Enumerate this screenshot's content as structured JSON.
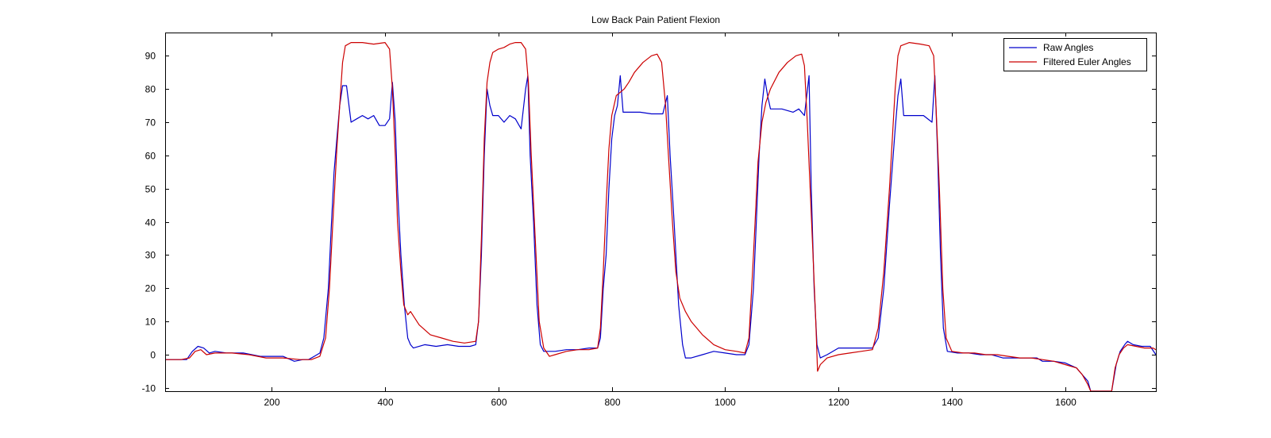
{
  "chart_data": {
    "type": "line",
    "title": "Low Back Pain Patient Flexion",
    "xlabel": "",
    "ylabel": "",
    "xlim": [
      12,
      1760
    ],
    "ylim": [
      -11,
      97
    ],
    "x_ticks": [
      200,
      400,
      600,
      800,
      1000,
      1200,
      1400,
      1600
    ],
    "y_ticks": [
      -10,
      0,
      10,
      20,
      30,
      40,
      50,
      60,
      70,
      80,
      90
    ],
    "grid": false,
    "legend_position": "top-right",
    "series": [
      {
        "name": "Raw Angles",
        "color": "#0000cc",
        "points": [
          [
            12,
            -1.5
          ],
          [
            30,
            -1.5
          ],
          [
            50,
            -1.5
          ],
          [
            60,
            1
          ],
          [
            70,
            2.5
          ],
          [
            80,
            2
          ],
          [
            90,
            0.5
          ],
          [
            100,
            1
          ],
          [
            120,
            0.5
          ],
          [
            150,
            0.5
          ],
          [
            180,
            -0.5
          ],
          [
            200,
            -0.5
          ],
          [
            220,
            -0.5
          ],
          [
            240,
            -2
          ],
          [
            255,
            -1.5
          ],
          [
            265,
            -1.5
          ],
          [
            275,
            -0.5
          ],
          [
            285,
            0.5
          ],
          [
            292,
            5
          ],
          [
            300,
            20
          ],
          [
            305,
            38
          ],
          [
            310,
            55
          ],
          [
            315,
            65
          ],
          [
            320,
            75
          ],
          [
            325,
            81
          ],
          [
            332,
            81
          ],
          [
            340,
            70
          ],
          [
            350,
            71
          ],
          [
            360,
            72
          ],
          [
            370,
            71
          ],
          [
            380,
            72
          ],
          [
            390,
            69
          ],
          [
            400,
            69
          ],
          [
            408,
            71
          ],
          [
            413,
            82
          ],
          [
            418,
            70
          ],
          [
            422,
            50
          ],
          [
            428,
            30
          ],
          [
            434,
            15
          ],
          [
            440,
            5
          ],
          [
            445,
            3
          ],
          [
            450,
            2
          ],
          [
            470,
            3
          ],
          [
            490,
            2.5
          ],
          [
            510,
            3
          ],
          [
            530,
            2.5
          ],
          [
            550,
            2.5
          ],
          [
            560,
            3
          ],
          [
            565,
            10
          ],
          [
            570,
            30
          ],
          [
            575,
            60
          ],
          [
            580,
            80
          ],
          [
            585,
            75
          ],
          [
            590,
            72
          ],
          [
            600,
            72
          ],
          [
            610,
            70
          ],
          [
            620,
            72
          ],
          [
            630,
            71
          ],
          [
            640,
            68
          ],
          [
            648,
            80
          ],
          [
            652,
            84
          ],
          [
            656,
            60
          ],
          [
            662,
            40
          ],
          [
            668,
            15
          ],
          [
            674,
            3
          ],
          [
            680,
            1
          ],
          [
            700,
            1
          ],
          [
            720,
            1.5
          ],
          [
            740,
            1.5
          ],
          [
            760,
            2
          ],
          [
            775,
            2
          ],
          [
            780,
            5
          ],
          [
            785,
            20
          ],
          [
            790,
            30
          ],
          [
            795,
            50
          ],
          [
            800,
            65
          ],
          [
            805,
            72
          ],
          [
            810,
            75
          ],
          [
            815,
            84
          ],
          [
            820,
            73
          ],
          [
            830,
            73
          ],
          [
            850,
            73
          ],
          [
            870,
            72.5
          ],
          [
            890,
            72.5
          ],
          [
            898,
            78
          ],
          [
            903,
            60
          ],
          [
            910,
            40
          ],
          [
            918,
            15
          ],
          [
            925,
            3
          ],
          [
            930,
            -1
          ],
          [
            940,
            -1
          ],
          [
            960,
            0
          ],
          [
            980,
            1
          ],
          [
            1000,
            0.5
          ],
          [
            1020,
            0
          ],
          [
            1035,
            0
          ],
          [
            1042,
            3
          ],
          [
            1050,
            20
          ],
          [
            1055,
            40
          ],
          [
            1060,
            60
          ],
          [
            1065,
            75
          ],
          [
            1070,
            83
          ],
          [
            1075,
            78
          ],
          [
            1080,
            74
          ],
          [
            1100,
            74
          ],
          [
            1120,
            73
          ],
          [
            1130,
            74
          ],
          [
            1140,
            72
          ],
          [
            1148,
            84
          ],
          [
            1152,
            50
          ],
          [
            1157,
            20
          ],
          [
            1162,
            3
          ],
          [
            1168,
            -1
          ],
          [
            1180,
            0
          ],
          [
            1200,
            2
          ],
          [
            1220,
            2
          ],
          [
            1240,
            2
          ],
          [
            1260,
            2
          ],
          [
            1270,
            5
          ],
          [
            1280,
            20
          ],
          [
            1290,
            45
          ],
          [
            1300,
            68
          ],
          [
            1305,
            78
          ],
          [
            1310,
            83
          ],
          [
            1315,
            72
          ],
          [
            1330,
            72
          ],
          [
            1350,
            72
          ],
          [
            1365,
            70
          ],
          [
            1370,
            84
          ],
          [
            1375,
            60
          ],
          [
            1380,
            30
          ],
          [
            1385,
            8
          ],
          [
            1392,
            1
          ],
          [
            1410,
            0.5
          ],
          [
            1430,
            0.5
          ],
          [
            1450,
            0
          ],
          [
            1470,
            0
          ],
          [
            1490,
            -1
          ],
          [
            1510,
            -1
          ],
          [
            1530,
            -1
          ],
          [
            1550,
            -1
          ],
          [
            1560,
            -2
          ],
          [
            1580,
            -2
          ],
          [
            1600,
            -2.5
          ],
          [
            1620,
            -4
          ],
          [
            1630,
            -6
          ],
          [
            1640,
            -8
          ],
          [
            1645,
            -11
          ],
          [
            1682,
            -11
          ],
          [
            1690,
            -3
          ],
          [
            1697,
            1
          ],
          [
            1705,
            3
          ],
          [
            1710,
            4
          ],
          [
            1720,
            3
          ],
          [
            1735,
            2.5
          ],
          [
            1750,
            2.5
          ],
          [
            1760,
            0
          ]
        ]
      },
      {
        "name": "Filtered Euler Angles",
        "color": "#cc0000",
        "points": [
          [
            12,
            -1.5
          ],
          [
            40,
            -1.5
          ],
          [
            55,
            -1
          ],
          [
            65,
            1
          ],
          [
            75,
            1.5
          ],
          [
            85,
            0
          ],
          [
            100,
            0.5
          ],
          [
            130,
            0.5
          ],
          [
            160,
            0
          ],
          [
            190,
            -1
          ],
          [
            220,
            -1
          ],
          [
            250,
            -1.5
          ],
          [
            270,
            -1.5
          ],
          [
            285,
            -0.5
          ],
          [
            295,
            5
          ],
          [
            302,
            20
          ],
          [
            308,
            40
          ],
          [
            315,
            62
          ],
          [
            320,
            75
          ],
          [
            325,
            88
          ],
          [
            330,
            93
          ],
          [
            340,
            94
          ],
          [
            360,
            94
          ],
          [
            380,
            93.5
          ],
          [
            400,
            94
          ],
          [
            408,
            92
          ],
          [
            413,
            80
          ],
          [
            418,
            60
          ],
          [
            422,
            40
          ],
          [
            428,
            25
          ],
          [
            433,
            15
          ],
          [
            440,
            12
          ],
          [
            445,
            13
          ],
          [
            460,
            9
          ],
          [
            480,
            6
          ],
          [
            500,
            5
          ],
          [
            520,
            4
          ],
          [
            540,
            3.5
          ],
          [
            560,
            4
          ],
          [
            565,
            10
          ],
          [
            570,
            35
          ],
          [
            575,
            65
          ],
          [
            580,
            82
          ],
          [
            585,
            88
          ],
          [
            590,
            91
          ],
          [
            600,
            92
          ],
          [
            610,
            92.5
          ],
          [
            620,
            93.5
          ],
          [
            630,
            94
          ],
          [
            640,
            94
          ],
          [
            648,
            92
          ],
          [
            653,
            82
          ],
          [
            658,
            60
          ],
          [
            665,
            35
          ],
          [
            672,
            10
          ],
          [
            680,
            2
          ],
          [
            690,
            -0.5
          ],
          [
            700,
            0
          ],
          [
            720,
            1
          ],
          [
            740,
            1.5
          ],
          [
            760,
            1.5
          ],
          [
            775,
            2
          ],
          [
            780,
            8
          ],
          [
            785,
            25
          ],
          [
            790,
            45
          ],
          [
            795,
            62
          ],
          [
            800,
            72
          ],
          [
            808,
            78
          ],
          [
            815,
            79
          ],
          [
            822,
            80
          ],
          [
            830,
            82
          ],
          [
            840,
            85
          ],
          [
            855,
            88
          ],
          [
            870,
            90
          ],
          [
            880,
            90.5
          ],
          [
            888,
            88
          ],
          [
            895,
            75
          ],
          [
            900,
            60
          ],
          [
            907,
            40
          ],
          [
            913,
            25
          ],
          [
            920,
            17
          ],
          [
            930,
            13
          ],
          [
            940,
            10
          ],
          [
            960,
            6
          ],
          [
            980,
            3
          ],
          [
            1000,
            1.5
          ],
          [
            1020,
            1
          ],
          [
            1035,
            0.5
          ],
          [
            1042,
            5
          ],
          [
            1050,
            30
          ],
          [
            1058,
            58
          ],
          [
            1065,
            70
          ],
          [
            1072,
            76
          ],
          [
            1080,
            80
          ],
          [
            1095,
            85
          ],
          [
            1110,
            88
          ],
          [
            1125,
            90
          ],
          [
            1135,
            90.5
          ],
          [
            1140,
            87
          ],
          [
            1145,
            70
          ],
          [
            1150,
            50
          ],
          [
            1155,
            30
          ],
          [
            1160,
            10
          ],
          [
            1163,
            -5
          ],
          [
            1168,
            -3
          ],
          [
            1180,
            -1
          ],
          [
            1200,
            0
          ],
          [
            1220,
            0.5
          ],
          [
            1240,
            1
          ],
          [
            1260,
            1.5
          ],
          [
            1270,
            8
          ],
          [
            1280,
            25
          ],
          [
            1290,
            50
          ],
          [
            1300,
            80
          ],
          [
            1305,
            90
          ],
          [
            1310,
            93
          ],
          [
            1325,
            94
          ],
          [
            1345,
            93.5
          ],
          [
            1360,
            93
          ],
          [
            1368,
            90
          ],
          [
            1372,
            75
          ],
          [
            1378,
            50
          ],
          [
            1384,
            20
          ],
          [
            1390,
            5
          ],
          [
            1400,
            1
          ],
          [
            1420,
            0.5
          ],
          [
            1440,
            0.5
          ],
          [
            1460,
            0
          ],
          [
            1480,
            0
          ],
          [
            1500,
            -0.5
          ],
          [
            1520,
            -1
          ],
          [
            1540,
            -1
          ],
          [
            1560,
            -1.5
          ],
          [
            1580,
            -2
          ],
          [
            1600,
            -3
          ],
          [
            1620,
            -4
          ],
          [
            1630,
            -6
          ],
          [
            1640,
            -9
          ],
          [
            1645,
            -11
          ],
          [
            1682,
            -11
          ],
          [
            1688,
            -4
          ],
          [
            1695,
            0
          ],
          [
            1703,
            2
          ],
          [
            1710,
            3
          ],
          [
            1725,
            2.5
          ],
          [
            1740,
            2
          ],
          [
            1755,
            2
          ],
          [
            1760,
            1.5
          ]
        ]
      }
    ]
  }
}
